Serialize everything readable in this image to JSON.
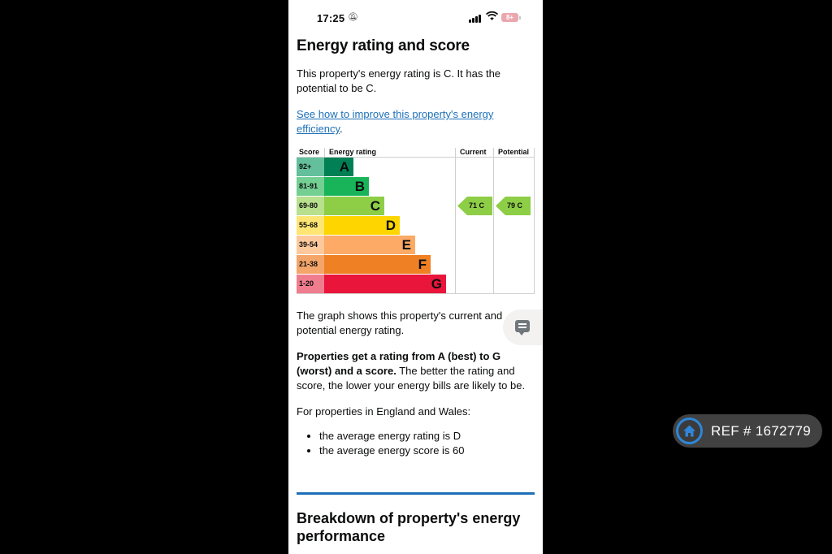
{
  "status_bar": {
    "time": "17:25",
    "battery": "8+"
  },
  "page": {
    "title": "Energy rating and score",
    "intro": "This property's energy rating is C. It has the potential to be C.",
    "improve_link": "See how to improve this property's energy efficiency",
    "improve_link_suffix": ".",
    "graph_note": "The graph shows this property's current and potential energy rating.",
    "rating_bold": "Properties get a rating from A (best) to G (worst) and a score.",
    "rating_rest": " The better the rating and score, the lower your energy bills are likely to be.",
    "england_wales": "For properties in England and Wales:",
    "bullets": [
      "the average energy rating is D",
      "the average energy score is 60"
    ],
    "breakdown_title": "Breakdown of property's energy performance"
  },
  "epc_chart": {
    "headers": {
      "score": "Score",
      "rating": "Energy rating",
      "current": "Current",
      "potential": "Potential"
    },
    "bands": [
      {
        "score": "92+",
        "letter": "A",
        "color": "#008054",
        "score_bg": "#63bf9c"
      },
      {
        "score": "81-91",
        "letter": "B",
        "color": "#19b459",
        "score_bg": "#73cf92"
      },
      {
        "score": "69-80",
        "letter": "C",
        "color": "#8dce46",
        "score_bg": "#b8e08d"
      },
      {
        "score": "55-68",
        "letter": "D",
        "color": "#ffd500",
        "score_bg": "#ffe674"
      },
      {
        "score": "39-54",
        "letter": "E",
        "color": "#fcaa65",
        "score_bg": "#fdc99c"
      },
      {
        "score": "21-38",
        "letter": "F",
        "color": "#ef8023",
        "score_bg": "#f4a56a"
      },
      {
        "score": "1-20",
        "letter": "G",
        "color": "#e9153b",
        "score_bg": "#f07d8e"
      }
    ],
    "current": {
      "score": 71,
      "label": "71  C",
      "color": "#8dce46"
    },
    "potential": {
      "score": 79,
      "label": "79  C",
      "color": "#8dce46"
    }
  },
  "overlay": {
    "ref_text": "REF # 1672779"
  }
}
